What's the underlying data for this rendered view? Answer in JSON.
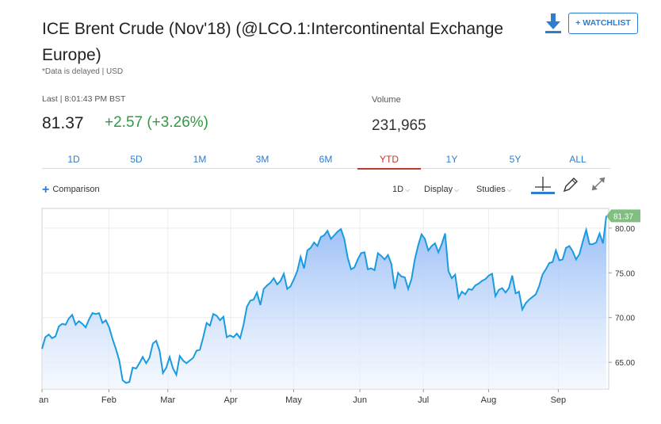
{
  "header": {
    "title": "ICE Brent Crude (Nov'18) (@LCO.1:Intercontinental Exchange Europe)",
    "delayed_note": "*Data is delayed | USD",
    "watchlist_label": "+ WATCHLIST",
    "download_icon": "download-icon"
  },
  "quote": {
    "last_label": "Last | 8:01:43 PM BST",
    "last_price": "81.37",
    "change": "+2.57 (+3.26%)",
    "volume_label": "Volume",
    "volume_value": "231,965"
  },
  "colors": {
    "accent": "#2e7dd1",
    "positive": "#2e9c42",
    "active_tab": "#c0392b",
    "line": "#1a9be0",
    "badge": "#7fbf7f"
  },
  "tabs": [
    {
      "label": "1D",
      "active": false
    },
    {
      "label": "5D",
      "active": false
    },
    {
      "label": "1M",
      "active": false
    },
    {
      "label": "3M",
      "active": false
    },
    {
      "label": "6M",
      "active": false
    },
    {
      "label": "YTD",
      "active": true
    },
    {
      "label": "1Y",
      "active": false
    },
    {
      "label": "5Y",
      "active": false
    },
    {
      "label": "ALL",
      "active": false
    }
  ],
  "controls": {
    "comparison": "Comparison",
    "interval": "1D",
    "display": "Display",
    "studies": "Studies",
    "tools": [
      "crosshair-icon",
      "pencil-icon",
      "expand-icon"
    ]
  },
  "chart_data": {
    "type": "area",
    "xlabel": "",
    "ylabel": "",
    "ylim": [
      62,
      82.2
    ],
    "yticks": [
      "80.00",
      "75.00",
      "70.00",
      "65.00"
    ],
    "ytick_values": [
      80,
      75,
      70,
      65
    ],
    "month_ticks": [
      "an",
      "Feb",
      "Mar",
      "Apr",
      "May",
      "Jun",
      "Jul",
      "Aug",
      "Sep"
    ],
    "last_value_label": "81.37",
    "grid": true,
    "series": [
      {
        "values": [
          66.5,
          67.8,
          68.1,
          67.7,
          67.9,
          69.0,
          69.3,
          69.2,
          69.9,
          70.3,
          69.2,
          69.6,
          69.3,
          68.9,
          69.8,
          70.5,
          70.4,
          70.5,
          69.4,
          69.7,
          68.9,
          67.6,
          66.5,
          65.2,
          63.0,
          62.7,
          62.8,
          64.4,
          64.3,
          64.9,
          65.6,
          64.9,
          65.5,
          67.1,
          67.4,
          66.3,
          63.8,
          64.4,
          65.6,
          64.3,
          63.6,
          65.7,
          65.2,
          64.9,
          65.2,
          65.5,
          66.3,
          66.4,
          67.8,
          69.4,
          69.1,
          70.4,
          70.2,
          69.7,
          70.1,
          67.8,
          68.0,
          67.8,
          68.2,
          67.7,
          69.2,
          71.2,
          71.9,
          72.0,
          72.8,
          71.4,
          73.2,
          73.6,
          73.9,
          74.4,
          73.7,
          74.1,
          74.9,
          73.2,
          73.5,
          74.3,
          75.2,
          76.8,
          75.5,
          77.5,
          77.8,
          78.4,
          78.0,
          79.0,
          79.2,
          79.7,
          78.8,
          79.2,
          79.6,
          79.9,
          78.8,
          76.7,
          75.4,
          75.6,
          76.5,
          77.2,
          77.3,
          75.4,
          75.5,
          75.3,
          77.2,
          76.9,
          76.5,
          77.0,
          76.0,
          73.2,
          75.0,
          74.6,
          74.5,
          73.2,
          74.3,
          76.5,
          78.1,
          79.3,
          78.8,
          77.5,
          78.0,
          78.3,
          77.3,
          78.2,
          79.4,
          75.2,
          74.4,
          74.8,
          72.2,
          72.9,
          72.6,
          73.2,
          73.1,
          73.6,
          73.8,
          74.1,
          74.3,
          74.7,
          74.9,
          72.4,
          73.1,
          73.3,
          72.8,
          73.3,
          74.7,
          72.7,
          72.9,
          70.9,
          71.6,
          72.0,
          72.3,
          72.6,
          73.5,
          74.8,
          75.4,
          76.1,
          76.2,
          77.5,
          76.4,
          76.5,
          77.8,
          78.0,
          77.4,
          76.5,
          77.1,
          78.5,
          79.8,
          78.2,
          78.2,
          78.4,
          79.4,
          78.3,
          81.37
        ]
      }
    ]
  }
}
